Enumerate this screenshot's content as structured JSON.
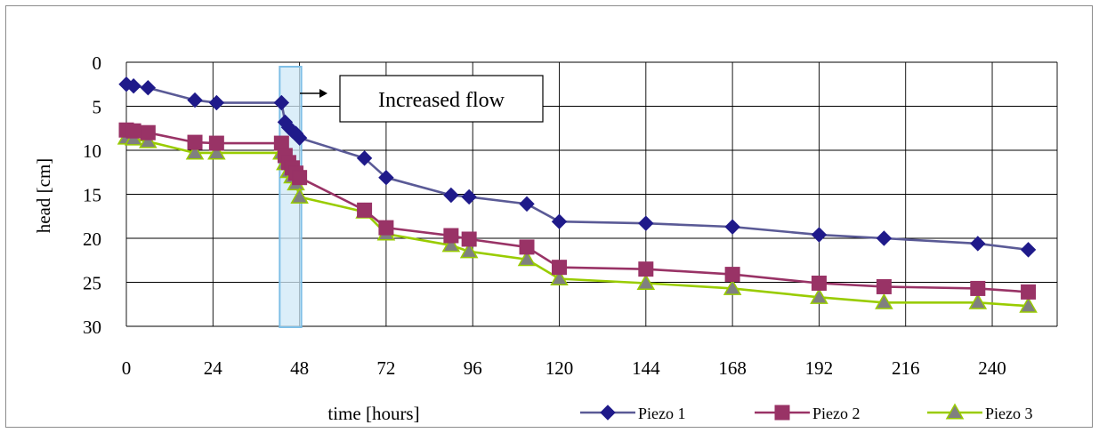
{
  "chart_data": {
    "type": "line",
    "xlabel": "time [hours]",
    "ylabel": "head [cm]",
    "xlim": [
      0,
      258
    ],
    "ylim": [
      0,
      30
    ],
    "y_reversed": true,
    "x_ticks": [
      0,
      24,
      48,
      72,
      96,
      120,
      144,
      168,
      192,
      216,
      240
    ],
    "y_ticks": [
      0,
      5,
      10,
      15,
      20,
      25,
      30
    ],
    "grid": true,
    "legend_position": "bottom-right",
    "annotation": {
      "text": "Increased flow",
      "highlight_x_range": [
        42.5,
        48.5
      ]
    },
    "series": [
      {
        "name": "Piezo 1",
        "color": "#5a5a96",
        "marker": "diamond",
        "marker_color": "#1f1a8a",
        "x": [
          0,
          2,
          6,
          19,
          25,
          43,
          44,
          45,
          46,
          47,
          48,
          66,
          72,
          90,
          95,
          111,
          120,
          144,
          168,
          192,
          210,
          236,
          250
        ],
        "y": [
          2.5,
          2.7,
          2.9,
          4.3,
          4.6,
          4.6,
          6.8,
          7.4,
          7.8,
          8.1,
          8.6,
          10.9,
          13.1,
          15.1,
          15.3,
          16.1,
          18.1,
          18.3,
          18.7,
          19.6,
          20.0,
          20.6,
          21.3
        ]
      },
      {
        "name": "Piezo 2",
        "color": "#993366",
        "marker": "square",
        "marker_color": "#993366",
        "x": [
          0,
          2,
          6,
          19,
          25,
          43,
          44,
          45,
          46,
          47,
          48,
          66,
          72,
          90,
          95,
          111,
          120,
          144,
          168,
          192,
          210,
          236,
          250
        ],
        "y": [
          7.7,
          7.8,
          8.0,
          9.1,
          9.2,
          9.2,
          10.6,
          11.4,
          12.0,
          12.6,
          13.1,
          16.8,
          18.8,
          19.7,
          20.1,
          21.0,
          23.3,
          23.5,
          24.1,
          25.1,
          25.5,
          25.7,
          26.1
        ]
      },
      {
        "name": "Piezo 3",
        "color": "#99cc00",
        "marker": "triangle",
        "marker_color": "#808080",
        "x": [
          0,
          2,
          6,
          19,
          25,
          43,
          44,
          45,
          46,
          47,
          48,
          66,
          72,
          90,
          95,
          111,
          120,
          144,
          168,
          192,
          210,
          236,
          250
        ],
        "y": [
          8.6,
          8.7,
          9.0,
          10.3,
          10.3,
          10.3,
          11.5,
          12.4,
          13.0,
          13.8,
          15.3,
          17.0,
          19.5,
          20.8,
          21.5,
          22.4,
          24.6,
          25.1,
          25.7,
          26.7,
          27.3,
          27.3,
          27.7
        ]
      }
    ]
  }
}
